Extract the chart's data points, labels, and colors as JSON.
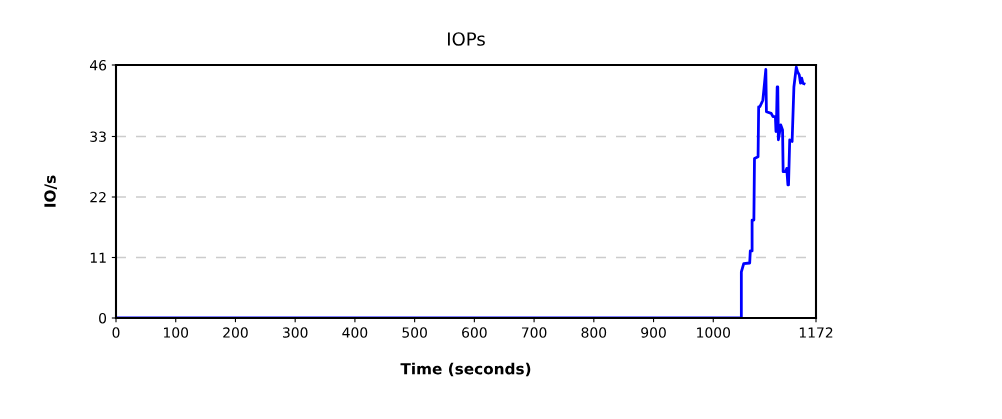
{
  "chart_data": {
    "type": "line",
    "title": "IOPs",
    "xlabel": "Time (seconds)",
    "ylabel": "IO/s",
    "x": [
      0,
      1047,
      1047,
      1051,
      1061,
      1062,
      1065,
      1065,
      1068,
      1069,
      1075,
      1076,
      1078,
      1083,
      1085,
      1088,
      1089,
      1097,
      1100,
      1102,
      1104,
      1105,
      1106,
      1107,
      1108,
      1109,
      1113,
      1116,
      1117,
      1121,
      1123,
      1125,
      1126,
      1128,
      1132,
      1135,
      1139,
      1141,
      1144,
      1146,
      1148,
      1150,
      1152
    ],
    "series": [
      {
        "color": "#0000ff",
        "values": [
          0,
          0,
          8.4,
          9.9,
          10,
          12.2,
          12.2,
          17.8,
          17.8,
          29,
          29.3,
          38.4,
          38.4,
          39.6,
          41.8,
          45.2,
          37.5,
          37.2,
          36.6,
          36.6,
          36.6,
          33.9,
          36.6,
          42,
          42,
          32.4,
          35.1,
          34.2,
          26.6,
          26.6,
          27.2,
          24.2,
          24.2,
          32.4,
          32.1,
          42,
          45.6,
          44.8,
          44.2,
          42.7,
          43.6,
          42.7,
          42.6
        ]
      }
    ],
    "xlim": [
      0,
      1172
    ],
    "xticks": [
      0,
      100,
      200,
      300,
      400,
      500,
      600,
      700,
      800,
      900,
      1000,
      1172
    ],
    "ylim": [
      0,
      46
    ],
    "yticks": [
      0,
      11,
      22,
      33,
      46
    ],
    "grid": "y",
    "line_style": "solid"
  }
}
